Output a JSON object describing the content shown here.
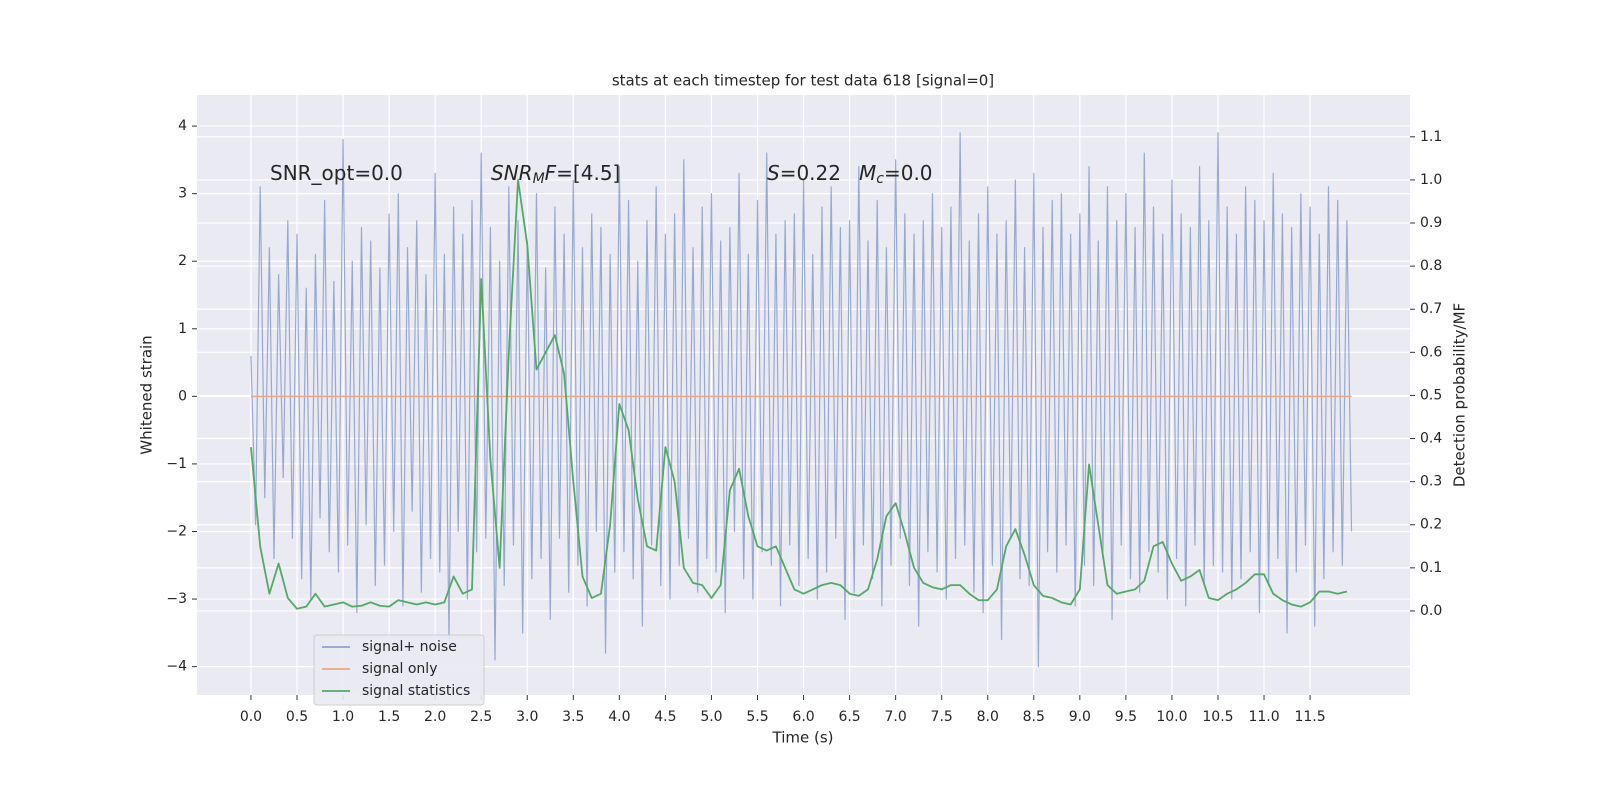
{
  "chart_data": {
    "type": "line",
    "title": "stats at each timestep for test data 618 [signal=0]",
    "xlabel": "Time (s)",
    "ylabel": "Whitened strain",
    "y2label": "Detection probability/MF",
    "xlim": [
      -0.586,
      12.585
    ],
    "ylim": [
      -4.42,
      4.46
    ],
    "y2lim": [
      -0.195,
      1.197
    ],
    "xticks": [
      {
        "value": 0,
        "label": "0.0"
      },
      0.5,
      {
        "value": 1,
        "label": "1.0"
      },
      1.5,
      {
        "value": 2,
        "label": "2.0"
      },
      2.5,
      {
        "value": 3,
        "label": "3.0"
      },
      3.5,
      {
        "value": 4,
        "label": "4.0"
      },
      4.5,
      {
        "value": 5,
        "label": "5.0"
      },
      5.5,
      {
        "value": 6,
        "label": "6.0"
      },
      6.5,
      {
        "value": 7,
        "label": "7.0"
      },
      7.5,
      {
        "value": 8,
        "label": "8.0"
      },
      8.5,
      {
        "value": 9,
        "label": "9.0"
      },
      9.5,
      {
        "value": 10,
        "label": "10.0"
      },
      10.5,
      {
        "value": 11,
        "label": "11.0"
      },
      11.5
    ],
    "yticks": [
      {
        "value": -4,
        "label": "−4"
      },
      {
        "value": -3,
        "label": "−3"
      },
      {
        "value": -2,
        "label": "−2"
      },
      {
        "value": -1,
        "label": "−1"
      },
      0,
      1,
      2,
      3,
      4
    ],
    "y2ticks": [
      {
        "value": 0,
        "label": "0.0"
      },
      0.1,
      0.2,
      0.3,
      0.4,
      0.5,
      0.6,
      0.7,
      0.8,
      0.9,
      {
        "value": 1,
        "label": "1.0"
      },
      1.1
    ],
    "grid": true,
    "background": "#eaeaf2",
    "legend": "lower left",
    "annotations": [
      {
        "parts": [
          {
            "text": "SNR_opt=0.0"
          }
        ]
      },
      {
        "parts": [
          {
            "text": "SNR",
            "italic": true
          },
          {
            "text": "M",
            "italic": true,
            "sub": true
          },
          {
            "text": "F",
            "italic": true
          },
          {
            "text": "=[4.5]"
          }
        ]
      },
      {
        "parts": [
          {
            "text": "S",
            "italic": true
          },
          {
            "text": "=0.22"
          }
        ]
      },
      {
        "parts": [
          {
            "text": "M",
            "italic": true
          },
          {
            "text": "c",
            "italic": true,
            "sub": true
          },
          {
            "text": "=0.0"
          }
        ]
      }
    ],
    "series": [
      {
        "name": "signal+ noise",
        "color": "#8fa2cc",
        "x": [
          0,
          0.05,
          0.1,
          0.15,
          0.2,
          0.25,
          0.3,
          0.35,
          0.4,
          0.45,
          0.5,
          0.55,
          0.6,
          0.65,
          0.7,
          0.75,
          0.8,
          0.85,
          0.9,
          0.95,
          1,
          1.05,
          1.1,
          1.15,
          1.2,
          1.25,
          1.3,
          1.35,
          1.4,
          1.45,
          1.5,
          1.55,
          1.6,
          1.65,
          1.7,
          1.75,
          1.8,
          1.85,
          1.9,
          1.95,
          2,
          2.05,
          2.1,
          2.15,
          2.2,
          2.25,
          2.3,
          2.35,
          2.4,
          2.45,
          2.5,
          2.55,
          2.6,
          2.65,
          2.7,
          2.75,
          2.8,
          2.85,
          2.9,
          2.95,
          3,
          3.05,
          3.1,
          3.15,
          3.2,
          3.25,
          3.3,
          3.35,
          3.4,
          3.45,
          3.5,
          3.55,
          3.6,
          3.65,
          3.7,
          3.75,
          3.8,
          3.85,
          3.9,
          3.95,
          4,
          4.05,
          4.1,
          4.15,
          4.2,
          4.25,
          4.3,
          4.35,
          4.4,
          4.45,
          4.5,
          4.55,
          4.6,
          4.65,
          4.7,
          4.75,
          4.8,
          4.85,
          4.9,
          4.95,
          5,
          5.05,
          5.1,
          5.15,
          5.2,
          5.25,
          5.3,
          5.35,
          5.4,
          5.45,
          5.5,
          5.55,
          5.6,
          5.65,
          5.7,
          5.75,
          5.8,
          5.85,
          5.9,
          5.95,
          6,
          6.05,
          6.1,
          6.15,
          6.2,
          6.25,
          6.3,
          6.35,
          6.4,
          6.45,
          6.5,
          6.55,
          6.6,
          6.65,
          6.7,
          6.75,
          6.8,
          6.85,
          6.9,
          6.95,
          7,
          7.05,
          7.1,
          7.15,
          7.2,
          7.25,
          7.3,
          7.35,
          7.4,
          7.45,
          7.5,
          7.55,
          7.6,
          7.65,
          7.7,
          7.75,
          7.8,
          7.85,
          7.9,
          7.95,
          8,
          8.05,
          8.1,
          8.15,
          8.2,
          8.25,
          8.3,
          8.35,
          8.4,
          8.45,
          8.5,
          8.55,
          8.6,
          8.65,
          8.7,
          8.75,
          8.8,
          8.85,
          8.9,
          8.95,
          9,
          9.05,
          9.1,
          9.15,
          9.2,
          9.25,
          9.3,
          9.35,
          9.4,
          9.45,
          9.5,
          9.55,
          9.6,
          9.65,
          9.7,
          9.75,
          9.8,
          9.85,
          9.9,
          9.95,
          10,
          10.05,
          10.1,
          10.15,
          10.2,
          10.25,
          10.3,
          10.35,
          10.4,
          10.45,
          10.5,
          10.55,
          10.6,
          10.65,
          10.7,
          10.75,
          10.8,
          10.85,
          10.9,
          10.95,
          11,
          11.05,
          11.1,
          11.15,
          11.2,
          11.25,
          11.3,
          11.35,
          11.4,
          11.45,
          11.5,
          11.55,
          11.6,
          11.65,
          11.7,
          11.75,
          11.8,
          11.85,
          11.9,
          11.95
        ],
        "values": [
          0.6,
          -1.9,
          3.1,
          -1.5,
          2.2,
          -2.4,
          1.8,
          -1.2,
          2.6,
          -2.1,
          2.4,
          -2.7,
          1.6,
          -3.0,
          2.1,
          -1.8,
          2.9,
          -2.3,
          1.7,
          -2.6,
          3.8,
          -2.2,
          2.0,
          -3.2,
          2.5,
          -1.9,
          2.3,
          -2.8,
          1.9,
          -2.5,
          2.7,
          -2.0,
          3.0,
          -3.1,
          2.2,
          -1.7,
          2.6,
          -2.9,
          1.8,
          -2.4,
          3.3,
          -2.6,
          2.1,
          -3.6,
          2.8,
          -2.0,
          2.4,
          -3.0,
          2.9,
          -2.3,
          3.6,
          -2.1,
          2.5,
          -3.9,
          2.0,
          -2.8,
          3.1,
          -2.2,
          2.6,
          -3.5,
          2.3,
          -2.7,
          3.0,
          -2.4,
          1.9,
          -3.3,
          2.8,
          -2.1,
          2.4,
          -2.9,
          3.2,
          -2.5,
          2.2,
          -3.1,
          2.7,
          -2.0,
          2.5,
          -3.8,
          2.1,
          -2.6,
          3.4,
          -2.3,
          2.9,
          -2.7,
          2.0,
          -3.4,
          2.6,
          -2.2,
          3.1,
          -2.8,
          2.4,
          -3.0,
          2.7,
          -2.5,
          3.5,
          -2.1,
          2.2,
          -2.9,
          2.8,
          -2.4,
          3.0,
          -2.6,
          2.3,
          -3.2,
          2.5,
          -2.0,
          3.3,
          -2.7,
          2.1,
          -3.0,
          2.9,
          -2.3,
          3.6,
          -2.5,
          2.4,
          -3.1,
          2.6,
          -2.2,
          2.7,
          -2.8,
          3.2,
          -2.4,
          2.1,
          -3.0,
          2.8,
          -2.6,
          3.1,
          -2.1,
          2.5,
          -3.3,
          2.6,
          -2.9,
          3.4,
          -2.2,
          2.3,
          -2.7,
          2.9,
          -3.1,
          2.2,
          -2.5,
          3.5,
          -2.1,
          2.7,
          -2.8,
          2.4,
          -3.4,
          2.6,
          -2.3,
          3.0,
          -2.6,
          2.5,
          -3.0,
          2.8,
          -2.4,
          3.9,
          -2.2,
          2.3,
          -2.9,
          2.7,
          -3.2,
          3.1,
          -2.5,
          2.4,
          -3.6,
          2.6,
          -2.1,
          3.2,
          -2.7,
          2.2,
          -2.8,
          3.3,
          -4.0,
          2.5,
          -2.3,
          2.9,
          -2.6,
          3.0,
          -2.2,
          2.4,
          -3.1,
          2.7,
          -2.5,
          3.4,
          -2.8,
          2.3,
          -2.4,
          3.1,
          -3.3,
          2.6,
          -2.2,
          3.0,
          -2.7,
          2.5,
          -2.9,
          3.6,
          -2.3,
          2.8,
          -2.6,
          2.4,
          -3.0,
          3.2,
          -2.4,
          2.7,
          -3.1,
          2.5,
          -2.2,
          3.4,
          -2.8,
          2.6,
          -2.5,
          3.9,
          -2.6,
          2.8,
          -3.0,
          2.4,
          -2.7,
          3.1,
          -2.3,
          2.9,
          -3.2,
          2.6,
          -2.8,
          3.3,
          -2.4,
          2.7,
          -3.5,
          2.5,
          -2.6,
          3.0,
          -2.2,
          2.8,
          -3.4,
          2.4,
          -2.7,
          3.1,
          -2.3,
          2.9,
          -2.5,
          2.6,
          -2.0
        ]
      },
      {
        "name": "signal only",
        "color": "#e8a88a",
        "x": [
          0,
          11.95
        ],
        "values": [
          0,
          0
        ]
      },
      {
        "name": "signal statistics",
        "color": "#55a868",
        "axis": "y2",
        "x": [
          0,
          0.1,
          0.2,
          0.3,
          0.4,
          0.5,
          0.6,
          0.7,
          0.8,
          0.9,
          1,
          1.1,
          1.2,
          1.3,
          1.4,
          1.5,
          1.6,
          1.7,
          1.8,
          1.9,
          2,
          2.1,
          2.2,
          2.3,
          2.4,
          2.5,
          2.6,
          2.7,
          2.8,
          2.9,
          3,
          3.1,
          3.2,
          3.3,
          3.4,
          3.5,
          3.6,
          3.7,
          3.8,
          3.9,
          4,
          4.1,
          4.2,
          4.3,
          4.4,
          4.5,
          4.6,
          4.7,
          4.8,
          4.9,
          5,
          5.1,
          5.2,
          5.3,
          5.4,
          5.5,
          5.6,
          5.7,
          5.8,
          5.9,
          6,
          6.1,
          6.2,
          6.3,
          6.4,
          6.5,
          6.6,
          6.7,
          6.8,
          6.9,
          7,
          7.1,
          7.2,
          7.3,
          7.4,
          7.5,
          7.6,
          7.7,
          7.8,
          7.9,
          8,
          8.1,
          8.2,
          8.3,
          8.4,
          8.5,
          8.6,
          8.7,
          8.8,
          8.9,
          9,
          9.1,
          9.2,
          9.3,
          9.4,
          9.5,
          9.6,
          9.7,
          9.8,
          9.9,
          10,
          10.1,
          10.2,
          10.3,
          10.4,
          10.5,
          10.6,
          10.7,
          10.8,
          10.9,
          11,
          11.1,
          11.2,
          11.3,
          11.4,
          11.5,
          11.6,
          11.7,
          11.8,
          11.9
        ],
        "values": [
          0.38,
          0.15,
          0.04,
          0.11,
          0.03,
          0.005,
          0.01,
          0.04,
          0.01,
          0.015,
          0.02,
          0.01,
          0.012,
          0.02,
          0.012,
          0.01,
          0.025,
          0.02,
          0.015,
          0.02,
          0.015,
          0.02,
          0.08,
          0.04,
          0.05,
          0.77,
          0.35,
          0.1,
          0.6,
          1.0,
          0.85,
          0.56,
          0.6,
          0.64,
          0.55,
          0.3,
          0.08,
          0.03,
          0.04,
          0.2,
          0.48,
          0.42,
          0.26,
          0.15,
          0.14,
          0.38,
          0.3,
          0.1,
          0.065,
          0.06,
          0.03,
          0.06,
          0.28,
          0.33,
          0.22,
          0.15,
          0.14,
          0.15,
          0.1,
          0.05,
          0.04,
          0.05,
          0.06,
          0.065,
          0.06,
          0.04,
          0.035,
          0.05,
          0.12,
          0.22,
          0.25,
          0.18,
          0.1,
          0.065,
          0.055,
          0.05,
          0.06,
          0.06,
          0.04,
          0.025,
          0.025,
          0.05,
          0.15,
          0.19,
          0.13,
          0.06,
          0.035,
          0.03,
          0.02,
          0.015,
          0.05,
          0.34,
          0.2,
          0.06,
          0.04,
          0.045,
          0.05,
          0.07,
          0.15,
          0.16,
          0.11,
          0.07,
          0.08,
          0.095,
          0.03,
          0.025,
          0.04,
          0.05,
          0.065,
          0.085,
          0.085,
          0.04,
          0.025,
          0.015,
          0.01,
          0.02,
          0.045,
          0.045,
          0.04,
          0.045
        ]
      }
    ]
  }
}
